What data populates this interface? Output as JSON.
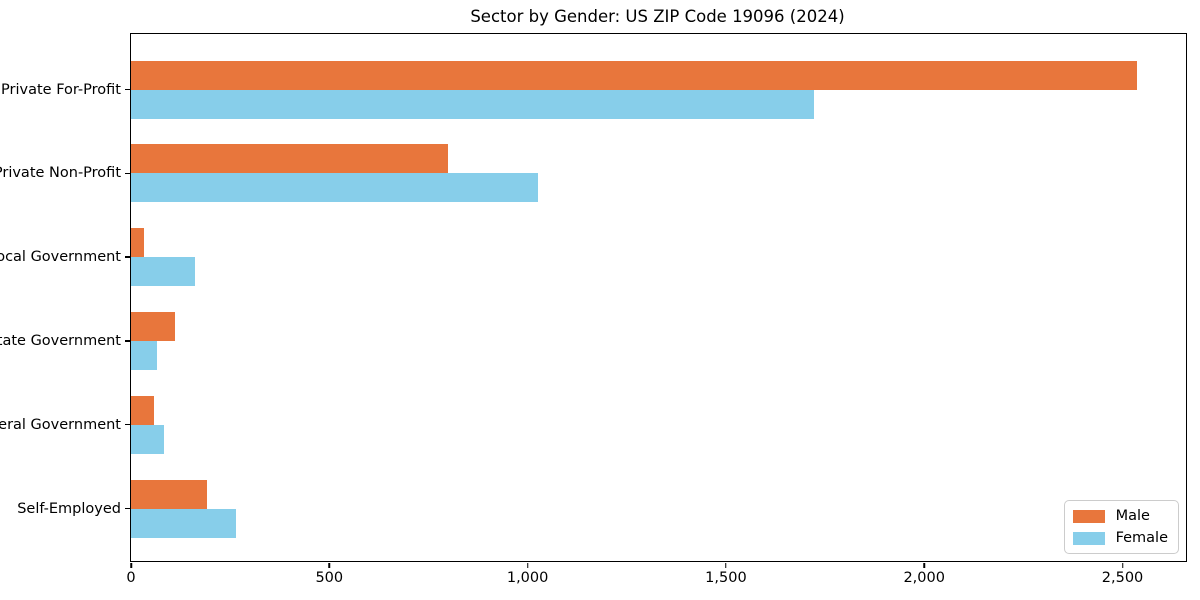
{
  "chart_data": {
    "type": "bar",
    "orientation": "horizontal",
    "title": "Sector by Gender: US ZIP Code 19096 (2024)",
    "categories": [
      "Private For-Profit",
      "Private Non-Profit",
      "Local Government",
      "State Government",
      "Federal Government",
      "Self-Employed"
    ],
    "series": [
      {
        "name": "Male",
        "color": "#e8763c",
        "values": [
          2537,
          800,
          34,
          112,
          59,
          192
        ]
      },
      {
        "name": "Female",
        "color": "#87ceea",
        "values": [
          1722,
          1026,
          162,
          66,
          84,
          265
        ]
      }
    ],
    "xlim": [
      0,
      2660
    ],
    "xticks": [
      0,
      500,
      1000,
      1500,
      2000,
      2500
    ],
    "xtick_labels": [
      "0",
      "500",
      "1,000",
      "1,500",
      "2,000",
      "2,500"
    ],
    "xlabel": "",
    "ylabel": "",
    "grid": false,
    "legend_position": "lower right",
    "spine_color": "#000000",
    "background_color": "#ffffff"
  }
}
